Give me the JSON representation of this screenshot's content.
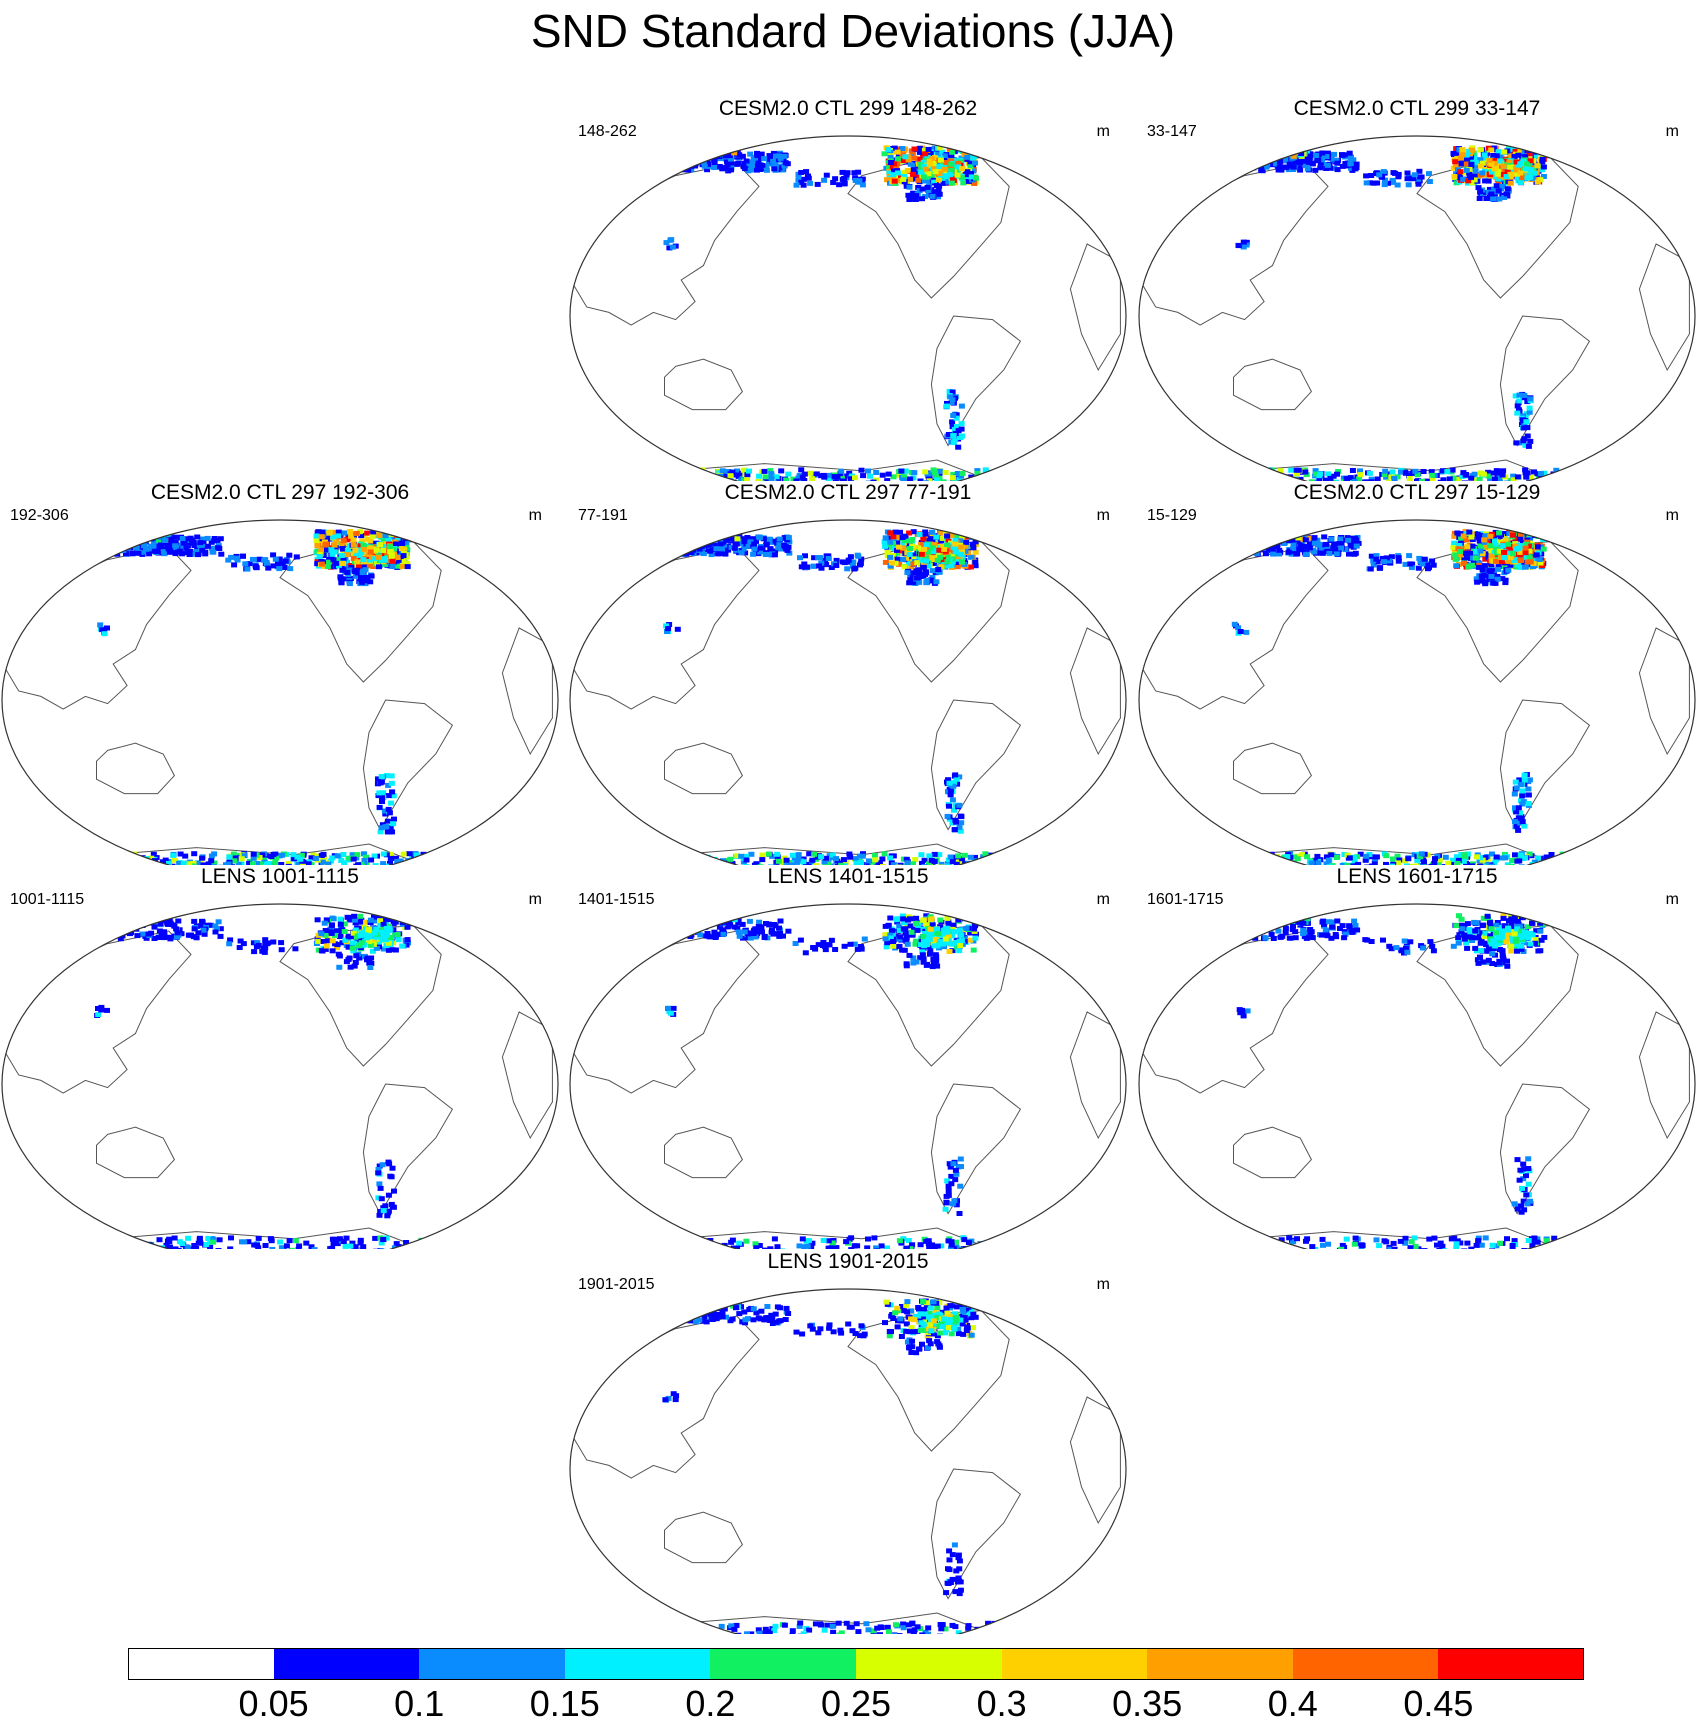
{
  "title": "SND Standard Deviations (JJA)",
  "units": "m",
  "panels": [
    {
      "title": "CESM2.0 CTL 299 148-262",
      "left_label": "148-262",
      "intensity": 1.0,
      "seed": 3
    },
    {
      "title": "CESM2.0 CTL 299 33-147",
      "left_label": "33-147",
      "intensity": 1.0,
      "seed": 7
    },
    {
      "title": "CESM2.0 CTL 297 192-306",
      "left_label": "192-306",
      "intensity": 1.05,
      "seed": 11
    },
    {
      "title": "CESM2.0 CTL 297 77-191",
      "left_label": "77-191",
      "intensity": 1.0,
      "seed": 13
    },
    {
      "title": "CESM2.0 CTL 297 15-129",
      "left_label": "15-129",
      "intensity": 1.0,
      "seed": 17
    },
    {
      "title": "LENS 1001-1115",
      "left_label": "1001-1115",
      "intensity": 0.55,
      "seed": 19
    },
    {
      "title": "LENS 1401-1515",
      "left_label": "1401-1515",
      "intensity": 0.55,
      "seed": 23
    },
    {
      "title": "LENS 1601-1715",
      "left_label": "1601-1715",
      "intensity": 0.55,
      "seed": 29
    },
    {
      "title": "LENS 1901-2015",
      "left_label": "1901-2015",
      "intensity": 0.5,
      "seed": 31
    }
  ],
  "colorbar": {
    "colors": [
      "#ffffff",
      "#0000ff",
      "#0a8cff",
      "#00f0ff",
      "#10f060",
      "#d8ff00",
      "#ffd000",
      "#ffa000",
      "#ff6400",
      "#ff0000"
    ],
    "labels": [
      "0.05",
      "0.1",
      "0.15",
      "0.2",
      "0.25",
      "0.3",
      "0.35",
      "0.4",
      "0.45"
    ]
  }
}
